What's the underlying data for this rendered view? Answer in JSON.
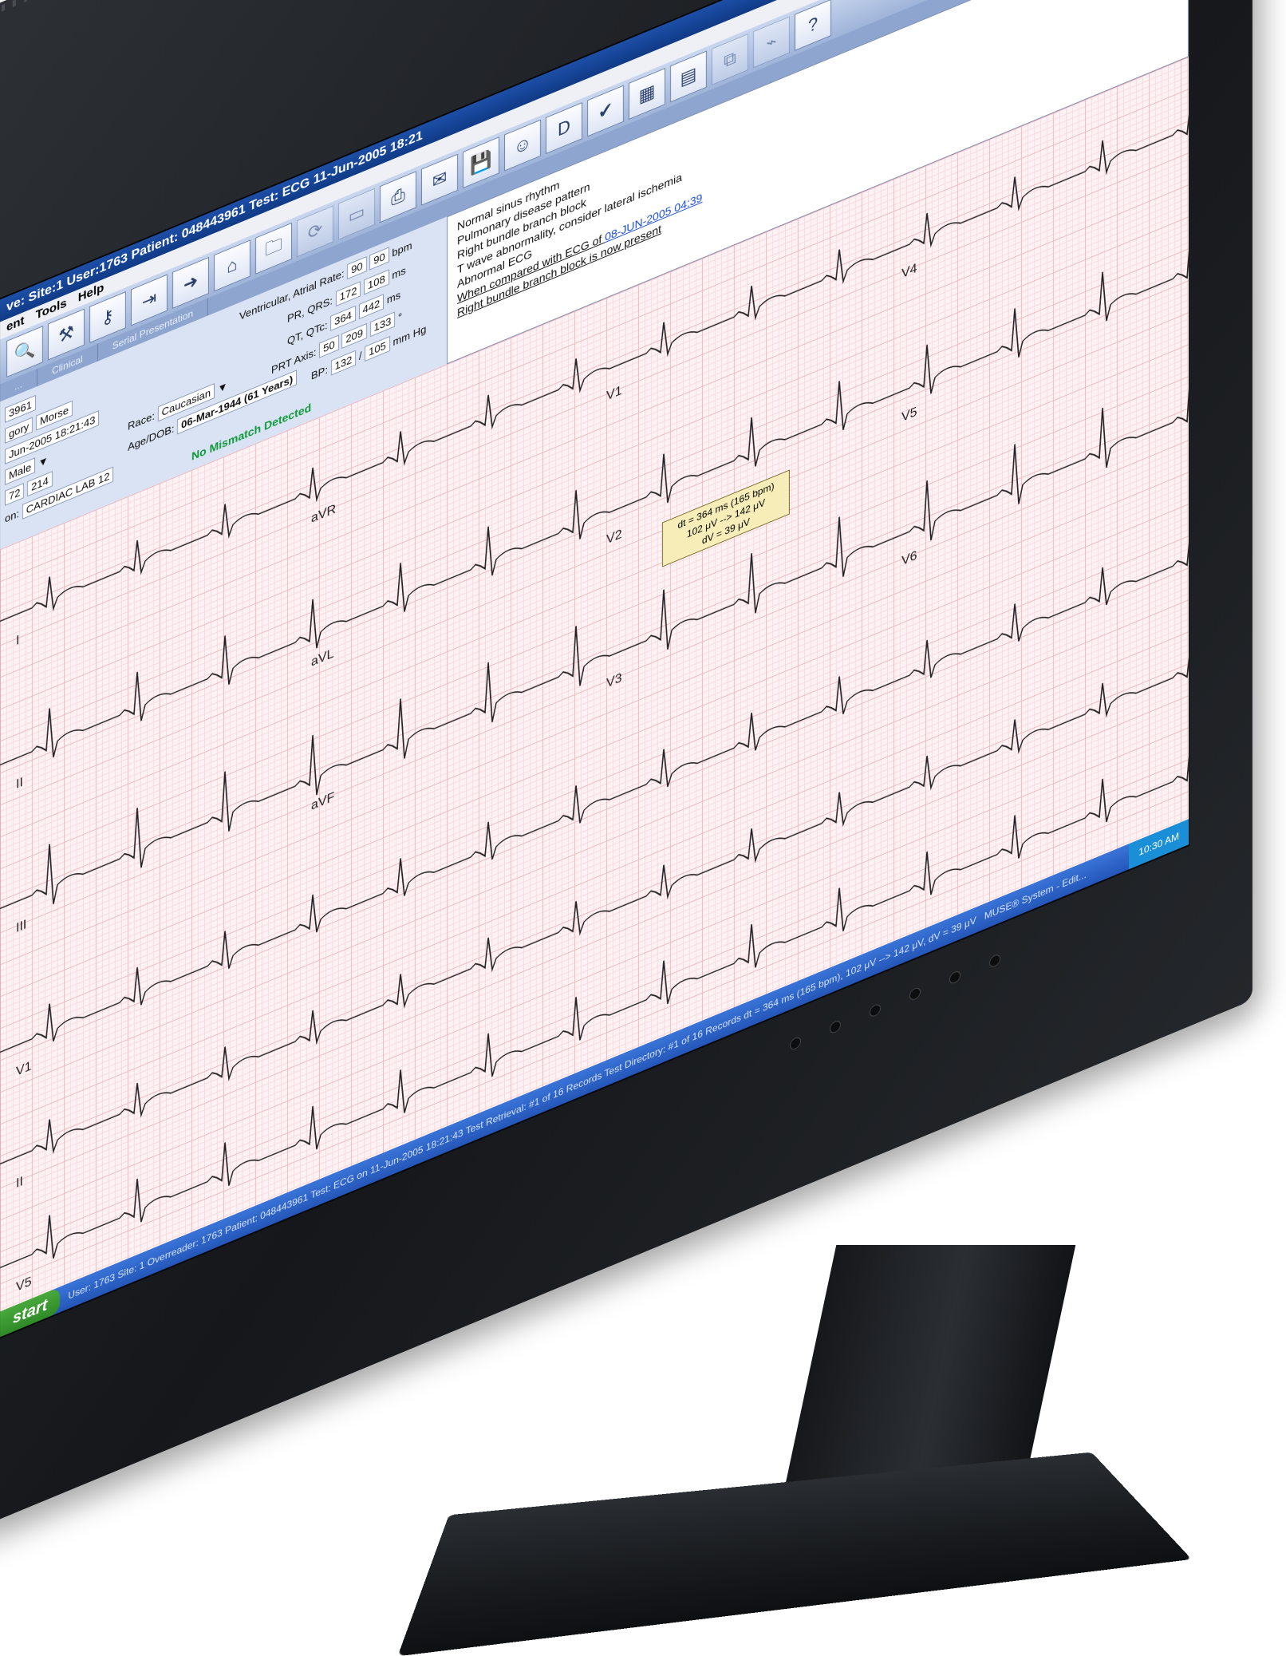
{
  "window": {
    "title": "ve: Site:1 User:1763  Patient: 048443961  Test: ECG 11-Jun-2005 18:21",
    "controls": [
      "_",
      "□",
      "X"
    ]
  },
  "menu": [
    "ent",
    "Tools",
    "Help"
  ],
  "toolbar": {
    "buttons": [
      {
        "icon": "search-icon"
      },
      {
        "icon": "tools-icon"
      },
      {
        "icon": "key-icon"
      },
      {
        "icon": "exit-icon"
      },
      {
        "icon": "arrow-right-icon"
      },
      {
        "icon": "home-icon"
      },
      {
        "icon": "folder-icon"
      },
      {
        "icon": "refresh-icon"
      },
      {
        "icon": "print-icon"
      },
      {
        "icon": "fax-icon"
      },
      {
        "icon": "save-icon"
      },
      {
        "icon": "user-check-icon"
      },
      {
        "icon": "dx-icon"
      },
      {
        "icon": "confirm-icon"
      },
      {
        "icon": "grid-icon"
      },
      {
        "icon": "calendar-icon"
      },
      {
        "icon": "compare-icon"
      },
      {
        "icon": "chart-icon"
      },
      {
        "icon": "help-icon"
      }
    ],
    "help_label": "?"
  },
  "tabs": [
    "...",
    "Clinical",
    "Serial Presentation"
  ],
  "patient": {
    "id": "3961",
    "last_name": "Morse",
    "category": "gory",
    "acq_datetime": "Jun-2005 18:21:43",
    "sex": "Male",
    "race_label": "Race:",
    "race": "Caucasian",
    "ht": "72",
    "wt": "214",
    "dob_label": "Age/DOB:",
    "dob": "06-Mar-1944 (61 Years)",
    "location": "CARDIAC LAB 12",
    "location_label": "on:"
  },
  "measurements": {
    "rate_label": "Ventricular, Atrial Rate:",
    "rate": [
      "90",
      "90"
    ],
    "rate_unit": "bpm",
    "pr_qrs_label": "PR, QRS:",
    "pr_qrs": [
      "172",
      "108"
    ],
    "pr_qrs_unit": "ms",
    "qt_label": "QT, QTc:",
    "qt": [
      "364",
      "442"
    ],
    "qt_unit": "ms",
    "axis_label": "PRT Axis:",
    "axis": [
      "50",
      "209",
      "133"
    ],
    "axis_unit": "°",
    "bp_label": "BP:",
    "bp": [
      "132",
      "105"
    ],
    "bp_unit": "mm Hg"
  },
  "mismatch": "No Mismatch Detected",
  "interpretation": {
    "statements": [
      "Normal sinus rhythm",
      "Pulmonary disease pattern",
      "Right bundle branch block",
      "T wave abnormality, consider lateral ischemia",
      "Abnormal ECG"
    ],
    "compare_prefix": "When compared with ECG of",
    "compare_link": "08-JUN-2005 04:39",
    "compare_result": "Right bundle branch block is now present"
  },
  "ecg": {
    "lead_labels": [
      "I",
      "aVR",
      "V1",
      "V4",
      "II",
      "aVL",
      "V2",
      "V5",
      "III",
      "aVF",
      "V3",
      "V6",
      "V1",
      "II",
      "V5"
    ],
    "caliper": [
      "dt = 364 ms (165 bpm)",
      "102 μV --> 142 μV",
      "dV = 39 μV"
    ]
  },
  "taskbar": {
    "start": "start",
    "status": "User: 1763   Site: 1   Overreader: 1763   Patient: 048443961   Test: ECG on 11-Jun-2005 18:21:43   Test Retrieval: #1 of 16 Records   Test Directory: #1 of 16 Records   dt = 364 ms (165 bpm), 102 μV --> 142 μV, dV = 39 μV",
    "app": "MUSE® System - Edit...",
    "clock": "10:30 AM"
  },
  "colors": {
    "titlebar": "#1d4fa8",
    "grid": "#f1b7bf",
    "mismatch": "#119a3b",
    "link": "#1a4fd6"
  }
}
